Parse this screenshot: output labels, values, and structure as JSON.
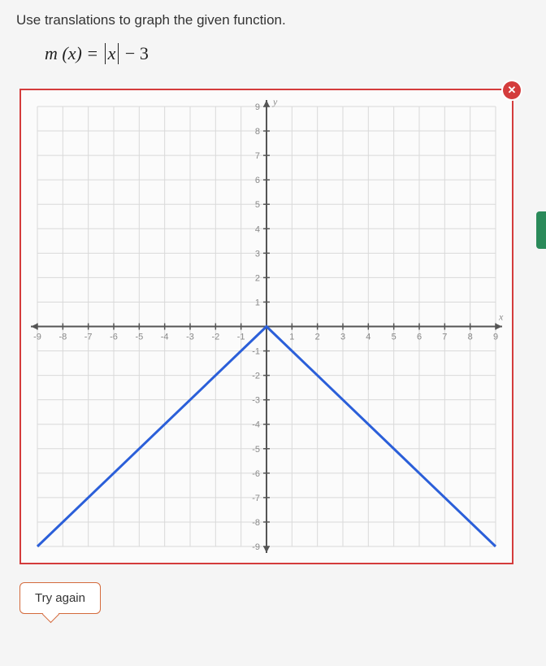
{
  "prompt": "Use translations to graph the given function.",
  "equation": {
    "lhs": "m (x) =",
    "abs_var": "x",
    "rhs": "− 3"
  },
  "graph": {
    "type": "line",
    "xlim": [
      -9,
      9
    ],
    "ylim": [
      -9,
      9
    ],
    "xtick_step": 1,
    "ytick_step": 1,
    "grid_color": "#d9d9d9",
    "axis_color": "#555555",
    "axis_width": 2,
    "background_color": "#fbfbfb",
    "border_color": "#d43c3c",
    "tick_label_color": "#888888",
    "tick_label_fontsize": 11,
    "axis_labels": {
      "x": "x",
      "y": "y"
    },
    "series": [
      {
        "color": "#2b5fd9",
        "width": 3,
        "points": [
          [
            -9,
            -9
          ],
          [
            0,
            0
          ],
          [
            9,
            -9
          ]
        ]
      }
    ],
    "close_badge_color": "#d43c3c"
  },
  "feedback": {
    "text": "Try again",
    "border_color": "#d46a3c"
  },
  "close_glyph": "✕"
}
